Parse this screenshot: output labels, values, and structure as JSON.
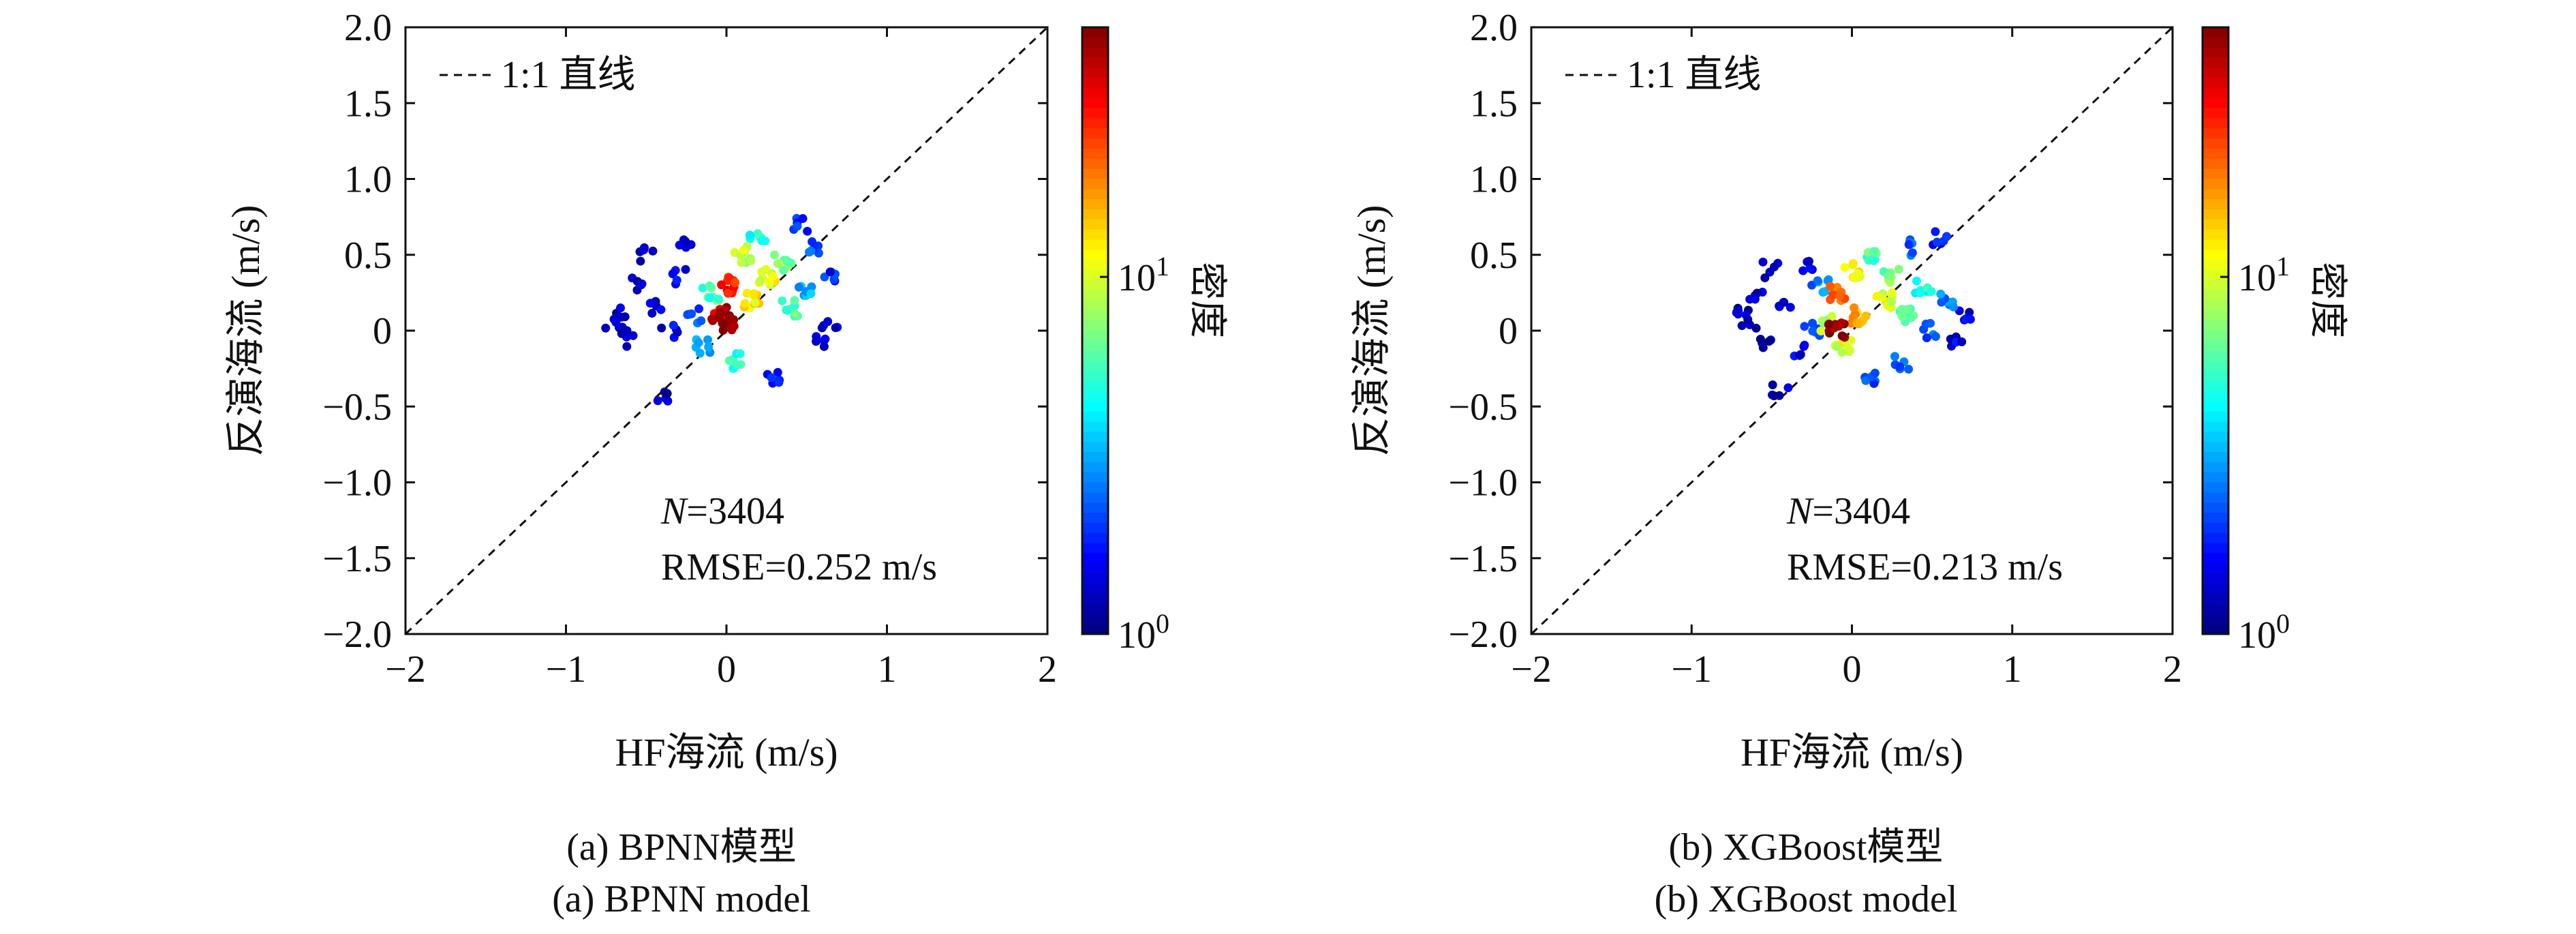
{
  "chart_data": [
    {
      "type": "scatter",
      "subtype": "density-scatter",
      "xlabel": "HF海流 (m/s)",
      "ylabel": "反演海流 (m/s)",
      "xlim": [
        -2,
        2
      ],
      "ylim": [
        -2,
        2
      ],
      "xticks": [
        "−2",
        "−1",
        "0",
        "1",
        "2"
      ],
      "yticks": [
        "2.0",
        "1.5",
        "1.0",
        "0.5",
        "0",
        "−0.5",
        "−1.0",
        "−1.5",
        "−2.0"
      ],
      "grid": false,
      "legend": {
        "label": "1:1 直线",
        "placement": "top-left",
        "line_style": "dashed"
      },
      "reference_line": {
        "x": [
          -2,
          2
        ],
        "y": [
          -2,
          2
        ]
      },
      "annotation": {
        "n_label": "N",
        "n_value": "=3404",
        "rmse": "RMSE=0.252 m/s"
      },
      "colorbar": {
        "label": "密度",
        "scale": "log",
        "range": [
          1,
          50
        ],
        "ticks": [
          "10",
          "10"
        ],
        "tick_exponents": [
          "0",
          "1"
        ]
      },
      "caption_cn": "(a) BPNN模型",
      "caption_en": "(a) BPNN model",
      "points": [
        [
          -0.7,
          0.07,
          0.05
        ],
        [
          -0.65,
          0.1,
          0.05
        ],
        [
          -0.6,
          -0.05,
          0.05
        ],
        [
          -0.55,
          0.3,
          0.05
        ],
        [
          -0.5,
          0.5,
          0.05
        ],
        [
          -0.45,
          0.15,
          0.1
        ],
        [
          -0.4,
          -0.45,
          0.05
        ],
        [
          -0.35,
          0.0,
          0.1
        ],
        [
          -0.3,
          0.35,
          0.1
        ],
        [
          -0.25,
          0.55,
          0.1
        ],
        [
          -0.2,
          0.1,
          0.2
        ],
        [
          -0.15,
          -0.1,
          0.3
        ],
        [
          -0.1,
          0.25,
          0.45
        ],
        [
          -0.05,
          0.1,
          0.95
        ],
        [
          0.0,
          0.05,
          1.0
        ],
        [
          0.0,
          0.3,
          0.85
        ],
        [
          0.05,
          -0.2,
          0.4
        ],
        [
          0.1,
          0.5,
          0.55
        ],
        [
          0.15,
          0.2,
          0.65
        ],
        [
          0.2,
          0.6,
          0.4
        ],
        [
          0.25,
          0.35,
          0.6
        ],
        [
          0.3,
          -0.3,
          0.15
        ],
        [
          0.35,
          0.45,
          0.5
        ],
        [
          0.4,
          0.15,
          0.45
        ],
        [
          0.45,
          0.7,
          0.15
        ],
        [
          0.5,
          0.25,
          0.3
        ],
        [
          0.55,
          0.55,
          0.2
        ],
        [
          0.6,
          -0.05,
          0.1
        ],
        [
          0.65,
          0.35,
          0.15
        ],
        [
          0.65,
          0.05,
          0.1
        ]
      ]
    },
    {
      "type": "scatter",
      "subtype": "density-scatter",
      "xlabel": "HF海流 (m/s)",
      "ylabel": "反演海流 (m/s)",
      "xlim": [
        -2,
        2
      ],
      "ylim": [
        -2,
        2
      ],
      "xticks": [
        "−2",
        "−1",
        "0",
        "1",
        "2"
      ],
      "yticks": [
        "2.0",
        "1.5",
        "1.0",
        "0.5",
        "0",
        "−0.5",
        "−1.0",
        "−1.5",
        "−2.0"
      ],
      "grid": false,
      "legend": {
        "label": "1:1 直线",
        "placement": "top-left",
        "line_style": "dashed"
      },
      "reference_line": {
        "x": [
          -2,
          2
        ],
        "y": [
          -2,
          2
        ]
      },
      "annotation": {
        "n_label": "N",
        "n_value": "=3404",
        "rmse": "RMSE=0.213 m/s"
      },
      "colorbar": {
        "label": "密度",
        "scale": "log",
        "range": [
          1,
          50
        ],
        "ticks": [
          "10",
          "10"
        ],
        "tick_exponents": [
          "0",
          "1"
        ]
      },
      "caption_cn": "(b) XGBoost模型",
      "caption_en": "(b) XGBoost model",
      "points": [
        [
          -0.7,
          0.12,
          0.05
        ],
        [
          -0.65,
          0.05,
          0.05
        ],
        [
          -0.6,
          0.25,
          0.05
        ],
        [
          -0.55,
          -0.1,
          0.05
        ],
        [
          -0.5,
          0.4,
          0.05
        ],
        [
          -0.45,
          -0.4,
          0.05
        ],
        [
          -0.4,
          0.15,
          0.1
        ],
        [
          -0.35,
          -0.15,
          0.1
        ],
        [
          -0.3,
          0.45,
          0.1
        ],
        [
          -0.25,
          0.0,
          0.2
        ],
        [
          -0.2,
          0.3,
          0.25
        ],
        [
          -0.15,
          0.05,
          0.55
        ],
        [
          -0.1,
          0.0,
          1.0
        ],
        [
          -0.1,
          0.25,
          0.8
        ],
        [
          -0.05,
          -0.1,
          0.6
        ],
        [
          0.0,
          0.4,
          0.65
        ],
        [
          0.05,
          0.1,
          0.7
        ],
        [
          0.1,
          -0.3,
          0.2
        ],
        [
          0.15,
          0.5,
          0.45
        ],
        [
          0.2,
          0.2,
          0.6
        ],
        [
          0.25,
          0.35,
          0.5
        ],
        [
          0.3,
          -0.2,
          0.2
        ],
        [
          0.35,
          0.1,
          0.45
        ],
        [
          0.4,
          0.55,
          0.2
        ],
        [
          0.45,
          0.3,
          0.4
        ],
        [
          0.5,
          0.0,
          0.2
        ],
        [
          0.55,
          0.6,
          0.15
        ],
        [
          0.6,
          0.2,
          0.25
        ],
        [
          0.65,
          -0.05,
          0.1
        ],
        [
          0.7,
          0.1,
          0.1
        ]
      ]
    }
  ]
}
